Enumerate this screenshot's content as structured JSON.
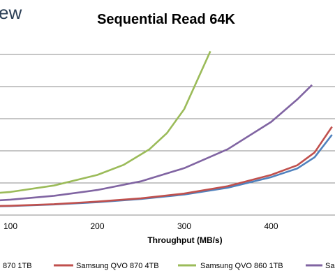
{
  "brand": {
    "logo_fragment": "ew"
  },
  "chart_data": {
    "type": "line",
    "title": "Sequential Read 64K",
    "xlabel": "Throughput (MB/s)",
    "ylabel": "",
    "xlim": [
      52,
      470
    ],
    "ylim": [
      0,
      5.5
    ],
    "x_ticks": [
      "100",
      "200",
      "300",
      "400"
    ],
    "grid": "horizontal",
    "legend_position": "bottom",
    "series": [
      {
        "name": "870 1TB",
        "color": "#4f81bd",
        "points": [
          [
            52,
            0.26
          ],
          [
            100,
            0.28
          ],
          [
            150,
            0.33
          ],
          [
            200,
            0.4
          ],
          [
            250,
            0.5
          ],
          [
            300,
            0.64
          ],
          [
            350,
            0.85
          ],
          [
            400,
            1.18
          ],
          [
            430,
            1.45
          ],
          [
            450,
            1.8
          ],
          [
            470,
            2.5
          ]
        ]
      },
      {
        "name": "Samsung QVO 870 4TB",
        "color": "#c0504d",
        "points": [
          [
            52,
            0.27
          ],
          [
            100,
            0.29
          ],
          [
            150,
            0.34
          ],
          [
            200,
            0.42
          ],
          [
            250,
            0.52
          ],
          [
            300,
            0.67
          ],
          [
            350,
            0.9
          ],
          [
            400,
            1.25
          ],
          [
            430,
            1.55
          ],
          [
            450,
            1.95
          ],
          [
            470,
            2.75
          ]
        ]
      },
      {
        "name": "Samsung QVO 860 1TB",
        "color": "#9bbb59",
        "points": [
          [
            52,
            0.62
          ],
          [
            100,
            0.72
          ],
          [
            150,
            0.92
          ],
          [
            200,
            1.25
          ],
          [
            230,
            1.56
          ],
          [
            260,
            2.05
          ],
          [
            280,
            2.55
          ],
          [
            300,
            3.3
          ],
          [
            315,
            4.2
          ],
          [
            330,
            5.1
          ]
        ]
      },
      {
        "name": "Sa",
        "color": "#8064a2",
        "points": [
          [
            52,
            0.4
          ],
          [
            100,
            0.48
          ],
          [
            150,
            0.6
          ],
          [
            200,
            0.78
          ],
          [
            250,
            1.05
          ],
          [
            300,
            1.46
          ],
          [
            350,
            2.05
          ],
          [
            400,
            2.9
          ],
          [
            430,
            3.6
          ],
          [
            447,
            4.05
          ]
        ]
      }
    ]
  }
}
